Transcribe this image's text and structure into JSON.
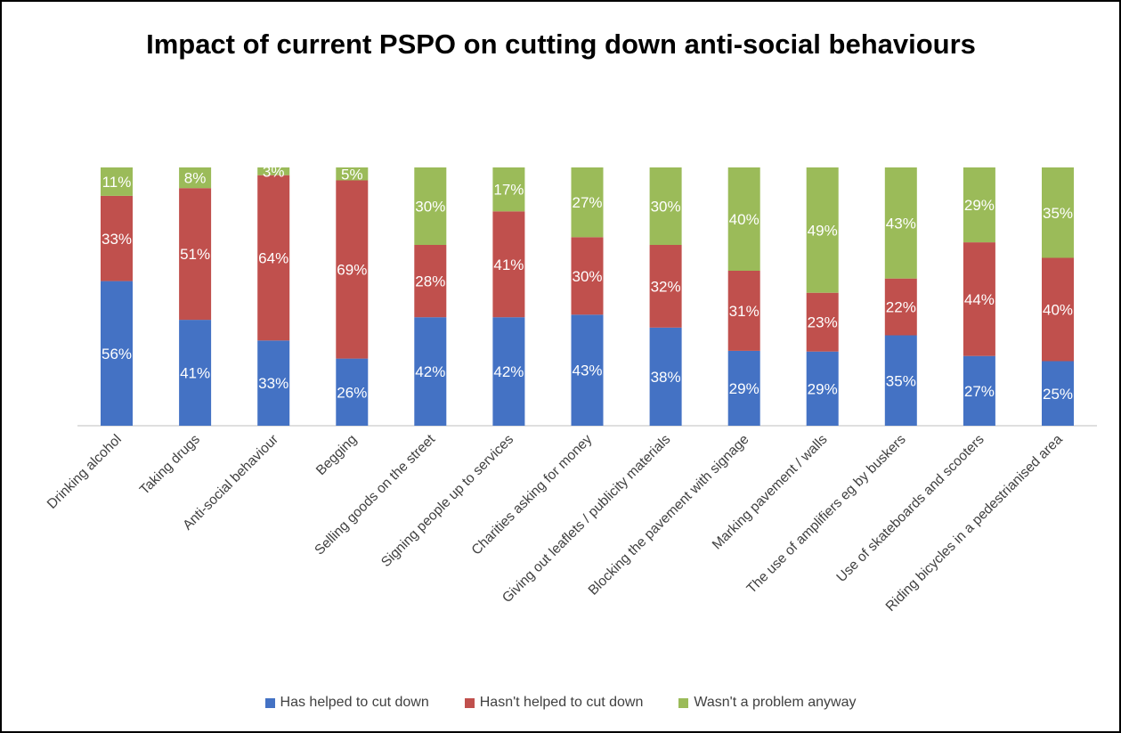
{
  "chart_data": {
    "type": "bar",
    "stacked": true,
    "normalized": true,
    "title": "Impact of current PSPO on cutting down anti-social behaviours",
    "categories": [
      "Drinking alcohol",
      "Taking drugs",
      "Anti-social behaviour",
      "Begging",
      "Selling goods on the street",
      "Signing people up to services",
      "Charities asking for money",
      "Giving out leaflets / publicity materials",
      "Blocking the pavement with signage",
      "Marking pavement / walls",
      "The use of amplifiers eg by buskers",
      "Use of skateboards and scooters",
      "Riding bicycles in a pedestrianised area"
    ],
    "series": [
      {
        "name": "Has helped to cut down",
        "color": "#4472C4",
        "values": [
          56,
          41,
          33,
          26,
          42,
          42,
          43,
          38,
          29,
          29,
          35,
          27,
          25
        ]
      },
      {
        "name": "Hasn't helped to cut down",
        "color": "#C0504D",
        "values": [
          33,
          51,
          64,
          69,
          28,
          41,
          30,
          32,
          31,
          23,
          22,
          44,
          40
        ]
      },
      {
        "name": "Wasn't a problem anyway",
        "color": "#9BBB59",
        "values": [
          11,
          8,
          3,
          5,
          30,
          17,
          27,
          30,
          40,
          49,
          43,
          29,
          35
        ]
      }
    ],
    "legend_position": "bottom",
    "grid": false
  }
}
